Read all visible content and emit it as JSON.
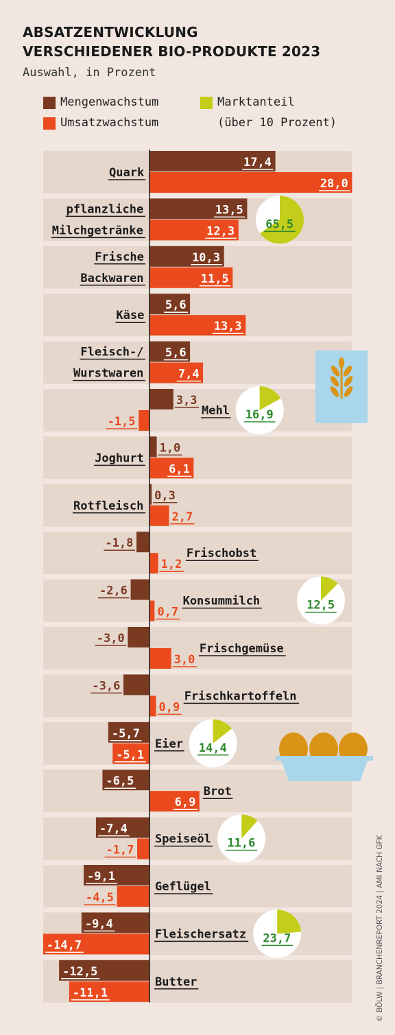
{
  "title_line1": "ABSATZENTWICKLUNG",
  "title_line2": "VERSCHIEDENER BIO-PRODUKTE 2023",
  "subtitle": "Auswahl, in Prozent",
  "legend": {
    "volume": "Mengenwachstum",
    "revenue": "Umsatzwachstum",
    "share_line1": "Marktanteil",
    "share_line2": "(über 10 Prozent)"
  },
  "colors": {
    "volume": "#7a3a22",
    "revenue": "#ea4a1e",
    "share": "#c3cd1a",
    "share_label": "#2e8a2e",
    "row_bg": "#e6d7cd"
  },
  "credit": "© BÖLW | BRANCHENREPORT 2024 | AMI NACH GFK",
  "chart_data": {
    "type": "bar",
    "orientation": "horizontal",
    "categories": [
      "Quark",
      "pflanzliche Milchgetränke",
      "Frische Backwaren",
      "Käse",
      "Fleisch-/ Wurstwaren",
      "Mehl",
      "Joghurt",
      "Rotfleisch",
      "Frischobst",
      "Konsummilch",
      "Frischgemüse",
      "Frischkartoffeln",
      "Eier",
      "Brot",
      "Speiseöl",
      "Geflügel",
      "Fleischersatz",
      "Butter"
    ],
    "label_lines": [
      [
        "Quark"
      ],
      [
        "pflanzliche",
        "Milchgetränke"
      ],
      [
        "Frische",
        "Backwaren"
      ],
      [
        "Käse"
      ],
      [
        "Fleisch-/",
        "Wurstwaren"
      ],
      [
        "Mehl"
      ],
      [
        "Joghurt"
      ],
      [
        "Rotfleisch"
      ],
      [
        "Frischobst"
      ],
      [
        "Konsummilch"
      ],
      [
        "Frischgemüse"
      ],
      [
        "Frischkartoffeln"
      ],
      [
        "Eier"
      ],
      [
        "Brot"
      ],
      [
        "Speiseöl"
      ],
      [
        "Geflügel"
      ],
      [
        "Fleischersatz"
      ],
      [
        "Butter"
      ]
    ],
    "series": [
      {
        "name": "Mengenwachstum",
        "values": [
          17.4,
          13.5,
          10.3,
          5.6,
          5.6,
          3.3,
          1.0,
          0.3,
          -1.8,
          -2.6,
          -3.0,
          -3.6,
          -5.7,
          -6.5,
          -7.4,
          -9.1,
          -9.4,
          -12.5
        ]
      },
      {
        "name": "Umsatzwachstum",
        "values": [
          28.0,
          12.3,
          11.5,
          13.3,
          7.4,
          -1.5,
          6.1,
          2.7,
          1.2,
          0.7,
          3.0,
          0.9,
          -5.1,
          6.9,
          -1.7,
          -4.5,
          -14.7,
          -11.1
        ]
      }
    ],
    "market_share": {
      "name": "Marktanteil",
      "values": {
        "pflanzliche Milchgetränke": 65.5,
        "Mehl": 16.9,
        "Konsummilch": 12.5,
        "Eier": 14.4,
        "Speiseöl": 11.6,
        "Fleischersatz": 23.7
      }
    },
    "value_format": "decimal comma, one decimal"
  }
}
